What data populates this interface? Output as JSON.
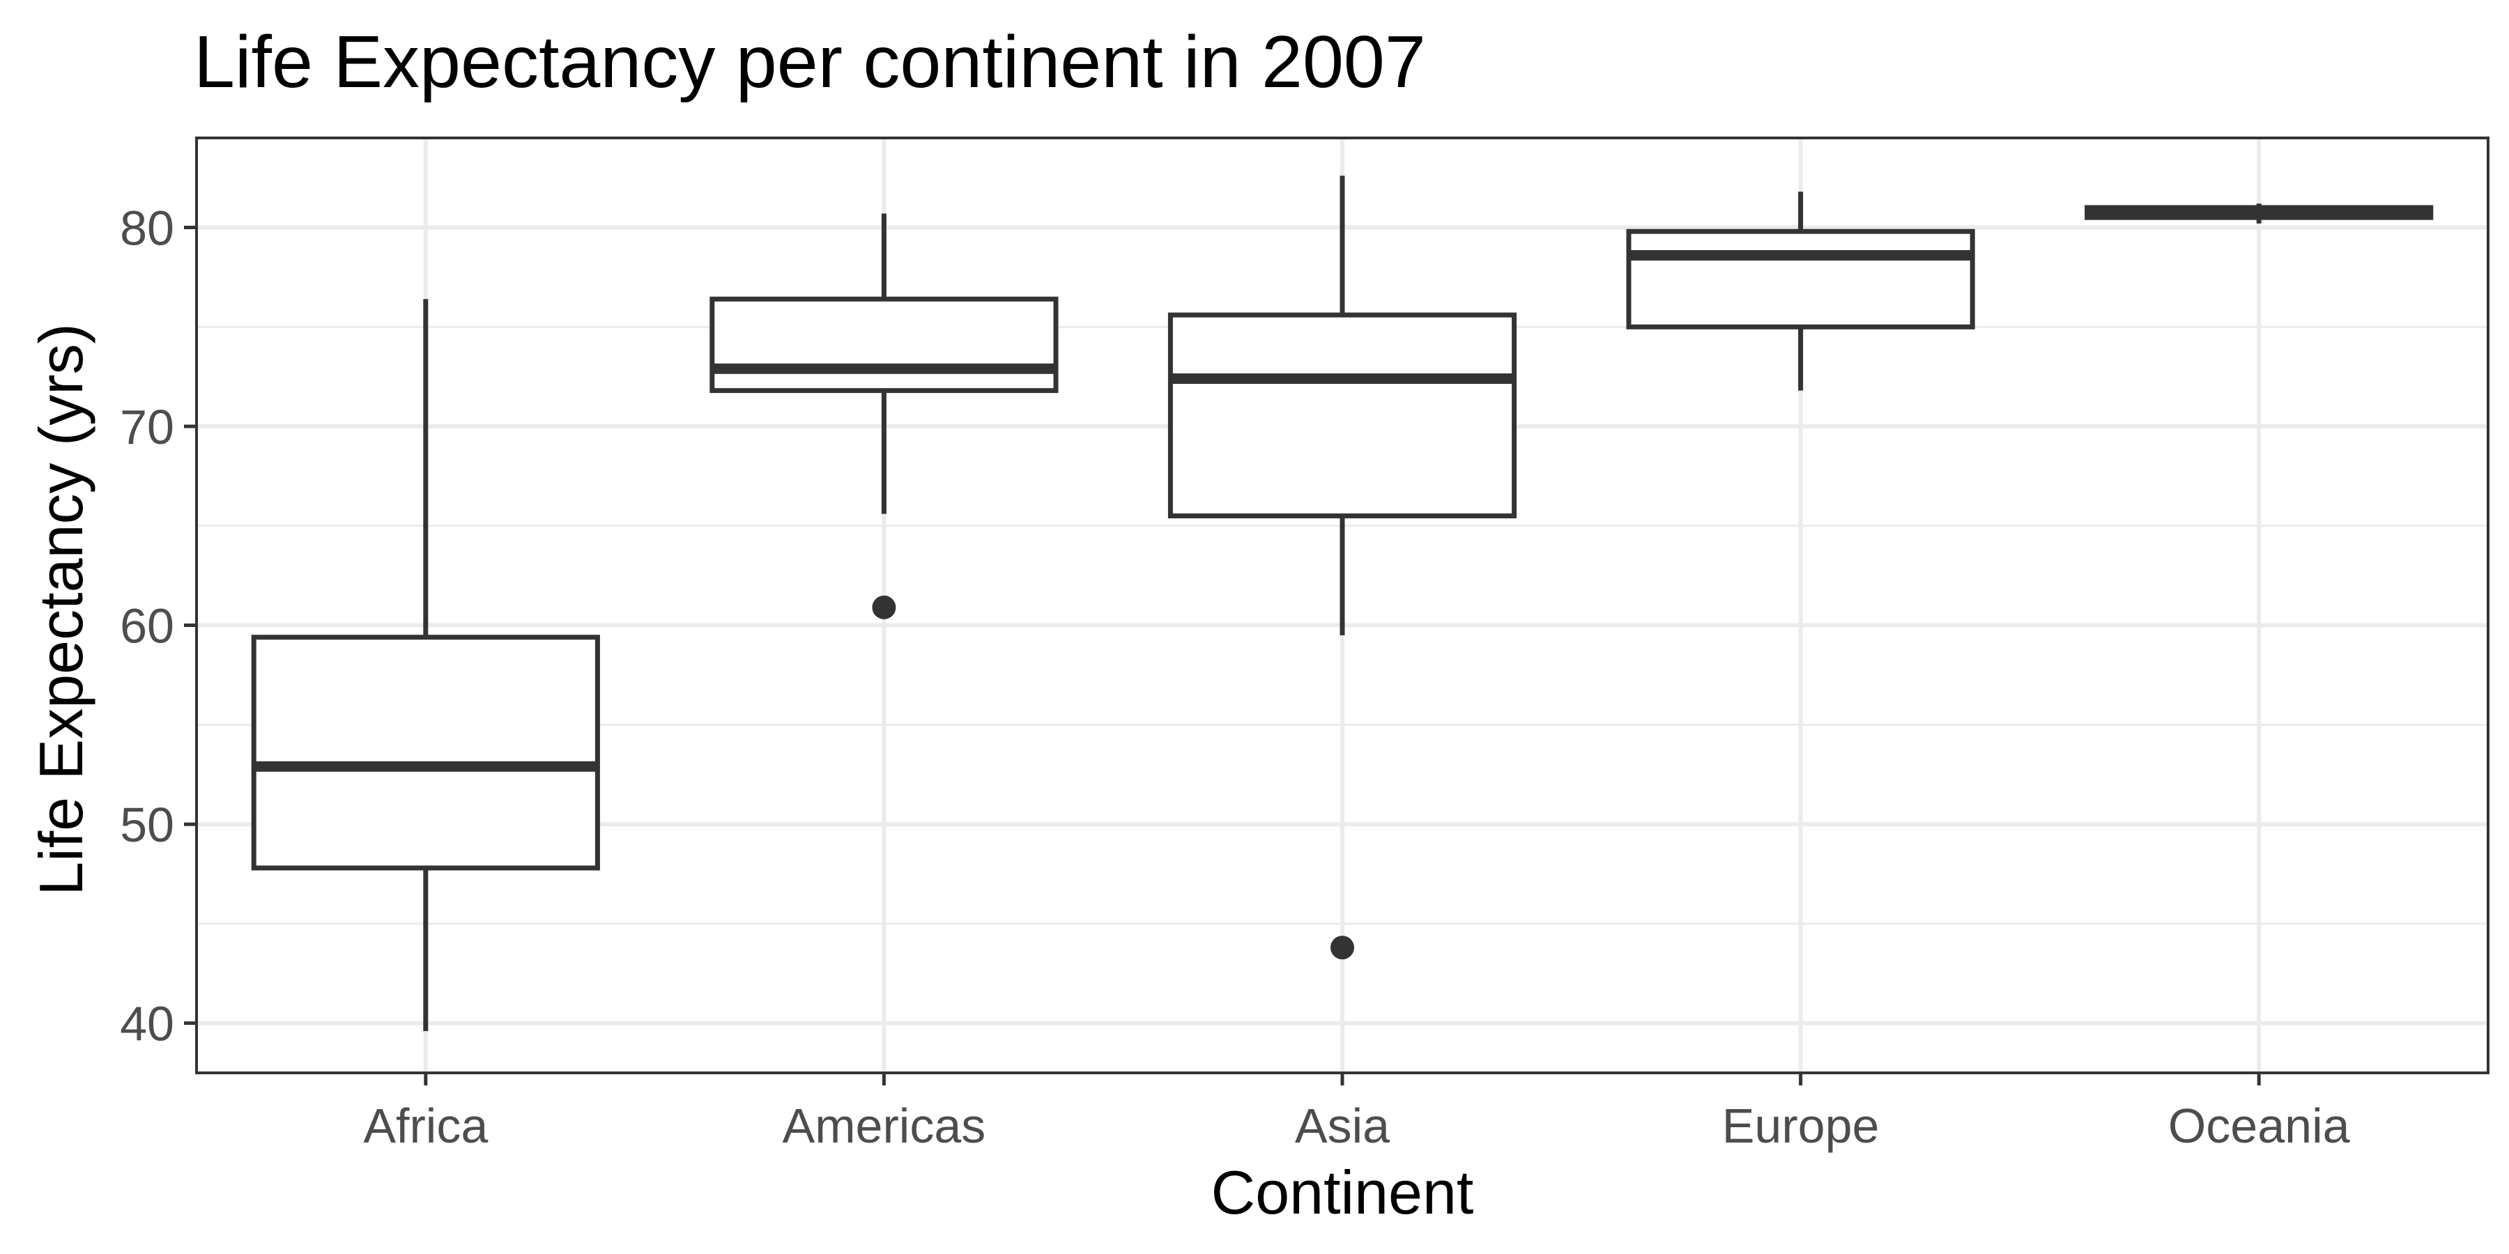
{
  "chart_data": {
    "type": "box",
    "title": "Life Expectancy per continent in 2007",
    "xlabel": "Continent",
    "ylabel": "Life Expectancy (yrs)",
    "ylim": [
      37.5,
      84.5
    ],
    "yticks": [
      "40",
      "50",
      "60",
      "70",
      "80"
    ],
    "grid": true,
    "theme": "bw",
    "colors": {
      "box_stroke": "#333333",
      "grid": "#ebebeb",
      "panel_border": "#333333",
      "tick_label": "#4d4d4d",
      "title": "#000000"
    },
    "categories": [
      "Africa",
      "Americas",
      "Asia",
      "Europe",
      "Oceania"
    ],
    "boxes": [
      {
        "category": "Africa",
        "whisker_low": 39.6,
        "q1": 47.8,
        "median": 52.9,
        "q3": 59.4,
        "whisker_high": 76.4,
        "outliers": []
      },
      {
        "category": "Americas",
        "whisker_low": 65.6,
        "q1": 71.8,
        "median": 72.9,
        "q3": 76.4,
        "whisker_high": 80.7,
        "outliers": [
          60.9
        ]
      },
      {
        "category": "Asia",
        "whisker_low": 59.5,
        "q1": 65.5,
        "median": 72.4,
        "q3": 75.6,
        "whisker_high": 82.6,
        "outliers": [
          43.8
        ]
      },
      {
        "category": "Europe",
        "whisker_low": 71.8,
        "q1": 75.0,
        "median": 78.6,
        "q3": 79.8,
        "whisker_high": 81.8,
        "outliers": []
      },
      {
        "category": "Oceania",
        "whisker_low": 80.2,
        "q1": 80.5,
        "median": 80.7,
        "q3": 81.0,
        "whisker_high": 81.2,
        "outliers": []
      }
    ]
  }
}
